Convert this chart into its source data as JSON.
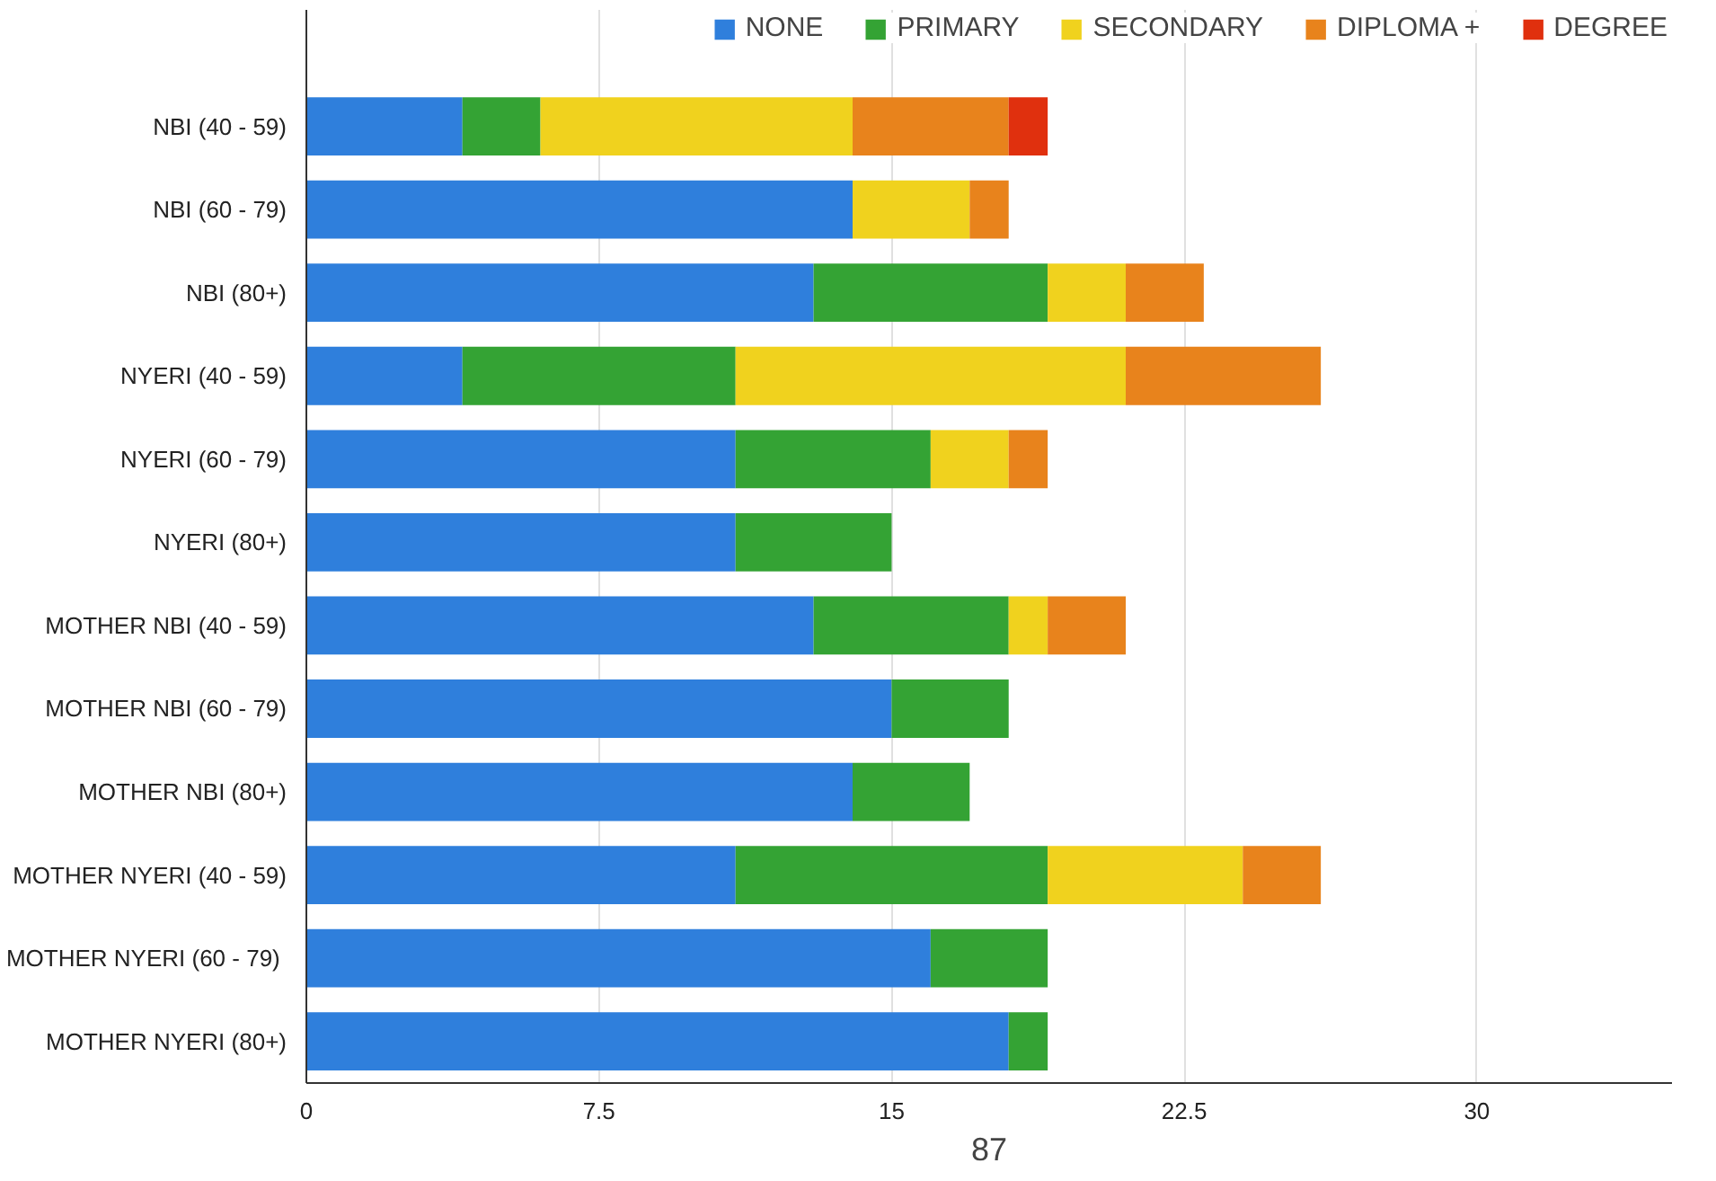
{
  "chart_data": {
    "type": "bar",
    "orientation": "horizontal",
    "stacked": true,
    "categories": [
      "NBI (40 - 59)",
      "NBI (60 - 79)",
      "NBI (80+)",
      "NYERI (40 - 59)",
      "NYERI (60 - 79)",
      "NYERI (80+)",
      "MOTHER NBI (40 - 59)",
      "MOTHER NBI (60 - 79)",
      "MOTHER NBI (80+)",
      "MOTHER NYERI (40 - 59)",
      "MOTHER  NYERI (60 - 79)",
      "MOTHER NYERI (80+)"
    ],
    "series": [
      {
        "name": "NONE",
        "color": "#2f7fdc",
        "values": [
          4,
          14,
          13,
          4,
          11,
          11,
          13,
          15,
          14,
          11,
          16,
          18
        ]
      },
      {
        "name": "PRIMARY",
        "color": "#34a334",
        "values": [
          2,
          null,
          6,
          7,
          5,
          4,
          5,
          3,
          3,
          8,
          3,
          1
        ]
      },
      {
        "name": "SECONDARY",
        "color": "#f0d21e",
        "values": [
          8,
          3,
          2,
          10,
          2,
          null,
          1,
          null,
          null,
          5,
          null,
          null
        ]
      },
      {
        "name": "DIPLOMA +",
        "color": "#e8831c",
        "values": [
          4,
          1,
          2,
          5,
          1,
          null,
          2,
          null,
          null,
          2,
          null,
          null
        ]
      },
      {
        "name": "DEGREE",
        "color": "#e0300e",
        "values": [
          1,
          null,
          null,
          null,
          null,
          null,
          null,
          null,
          null,
          null,
          null,
          null
        ]
      }
    ],
    "xlim": [
      0,
      35
    ],
    "xticks": [
      0,
      7.5,
      15,
      22.5,
      30
    ],
    "grid": "x",
    "legend": "top",
    "annotations": [
      "87"
    ]
  }
}
